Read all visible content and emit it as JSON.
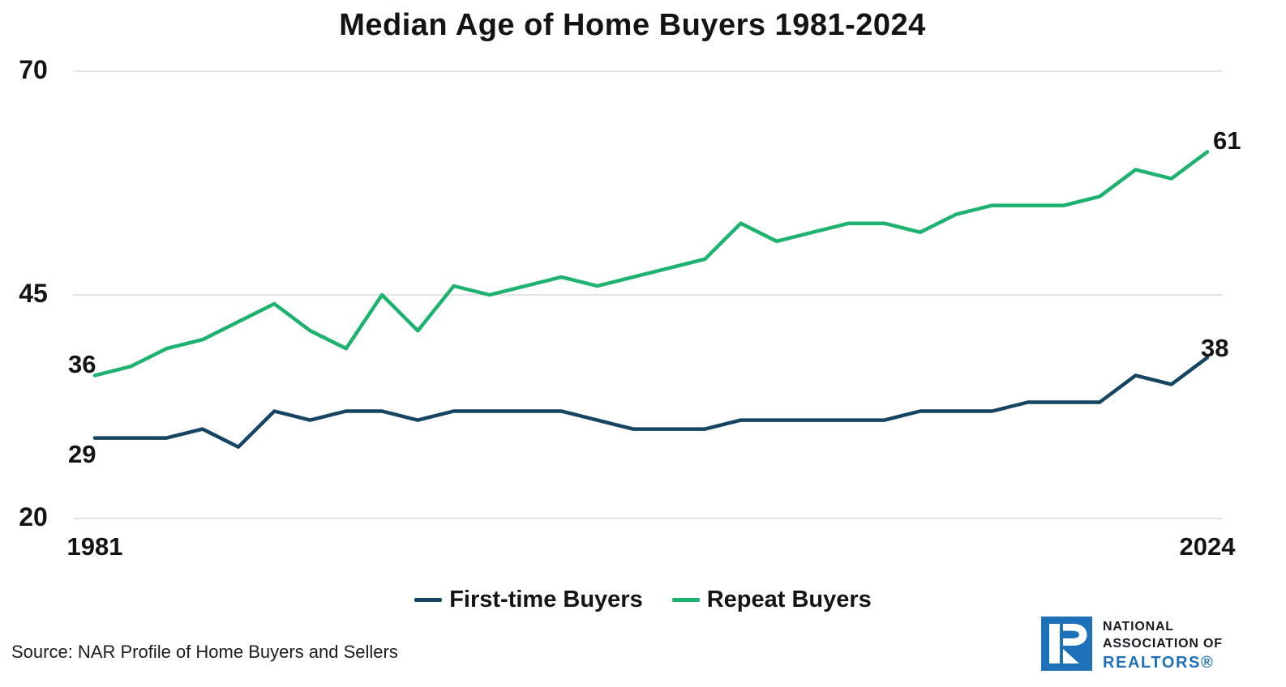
{
  "source": "Source: NAR Profile of Home Buyers and Sellers",
  "colors": {
    "first_time": "#164563",
    "repeat": "#1DB26E",
    "grid": "#DCDCDC",
    "logo_blue": "#1E71B8",
    "text": "#141414"
  },
  "logo": {
    "line1": "NATIONAL",
    "line2": "ASSOCIATION OF",
    "line3": "REALTORS®"
  },
  "chart_data": {
    "type": "line",
    "title": "Median Age of Home Buyers 1981-2024",
    "x": [
      1981,
      1985,
      1987,
      1989,
      1991,
      1993,
      1995,
      1997,
      1999,
      2001,
      2003,
      2004,
      2005,
      2006,
      2007,
      2008,
      2009,
      2010,
      2011,
      2012,
      2013,
      2014,
      2015,
      2016,
      2017,
      2018,
      2019,
      2020,
      2021,
      2022,
      2023,
      2024
    ],
    "series": [
      {
        "name": "First-time Buyers",
        "color": "#164563",
        "values": [
          29,
          29,
          29,
          30,
          28,
          32,
          31,
          32,
          32,
          31,
          32,
          32,
          32,
          32,
          31,
          30,
          30,
          30,
          31,
          31,
          31,
          31,
          31,
          32,
          32,
          32,
          33,
          33,
          33,
          36,
          35,
          38
        ]
      },
      {
        "name": "Repeat Buyers",
        "color": "#1DB26E",
        "values": [
          36,
          37,
          39,
          40,
          42,
          44,
          41,
          39,
          45,
          41,
          46,
          45,
          46,
          47,
          46,
          47,
          48,
          49,
          53,
          51,
          52,
          53,
          53,
          52,
          54,
          55,
          55,
          55,
          56,
          59,
          58,
          61
        ]
      }
    ],
    "ylim": [
      20,
      70
    ],
    "yticks": [
      70,
      45,
      20
    ],
    "xticks": [
      "1981",
      "2024"
    ],
    "grid": "horizontal-only",
    "legend_position": "bottom-center",
    "point_labels": [
      {
        "series": "Repeat Buyers",
        "year": 1981,
        "value": 36
      },
      {
        "series": "First-time Buyers",
        "year": 1981,
        "value": 29
      },
      {
        "series": "Repeat Buyers",
        "year": 2024,
        "value": 61
      },
      {
        "series": "First-time Buyers",
        "year": 2024,
        "value": 38
      }
    ]
  }
}
